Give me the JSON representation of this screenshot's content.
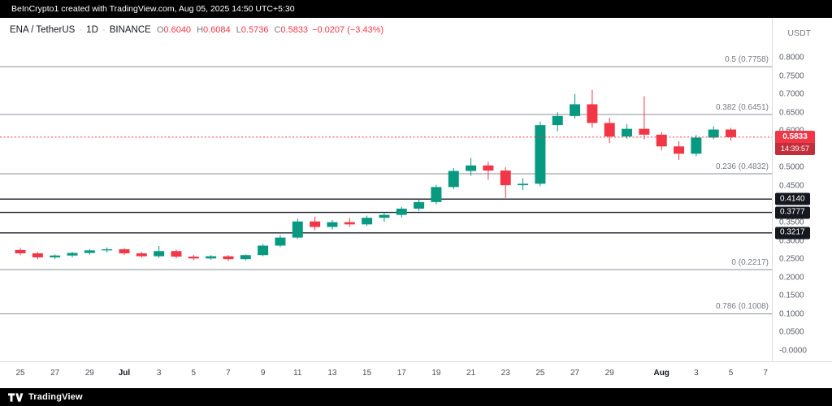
{
  "top_bar": {
    "attribution": "BeInCrypto1 created with TradingView.com, Aug 05, 2025 14:50 UTC+5:30"
  },
  "footer": {
    "brand": "TradingView"
  },
  "legend": {
    "symbol": "ENA / TetherUS",
    "sep": "·",
    "interval": "1D",
    "exchange": "BINANCE",
    "open_label": "O",
    "open": "0.6040",
    "high_label": "H",
    "high": "0.6084",
    "low_label": "L",
    "low": "0.5736",
    "close_label": "C",
    "close": "0.5833",
    "change": "−0.0207 (−3.43%)"
  },
  "price_axis": {
    "currency": "USDT",
    "labels": [
      "0.8000",
      "0.7500",
      "0.7000",
      "0.6500",
      "0.6000",
      "0.5500",
      "0.5000",
      "0.4500",
      "0.3500",
      "0.3000",
      "0.2500",
      "0.2000",
      "0.1500",
      "0.1000",
      "0.0500",
      "-0.0000"
    ],
    "line_badges": [
      {
        "text": "0.4140",
        "price": 0.414
      },
      {
        "text": "0.3777",
        "price": 0.3777
      },
      {
        "text": "0.3217",
        "price": 0.3217
      }
    ],
    "last_price_badge": {
      "text": "0.5833",
      "countdown": "14:39:57",
      "price": 0.5833
    }
  },
  "colors": {
    "up": "#089981",
    "down": "#f23645",
    "last_price": "#f23645",
    "fib_line": "#8b8f99",
    "hline": "#1a1e29"
  },
  "chart_data": {
    "type": "candlestick",
    "title": "ENA / TetherUS · 1D · BINANCE",
    "ylabel": "Price (USDT)",
    "ylim": [
      -0.029,
      0.909
    ],
    "grid": false,
    "last_price": 0.5833,
    "fib_levels": [
      {
        "label": "0.5 (0.7758)",
        "price": 0.7758
      },
      {
        "label": "0.382 (0.6451)",
        "price": 0.6451
      },
      {
        "label": "0.236 (0.4832)",
        "price": 0.4832
      },
      {
        "label": "0 (0.2217)",
        "price": 0.2217
      },
      {
        "label": "0.786 (0.1008)",
        "price": 0.1008
      }
    ],
    "hlines": [
      0.414,
      0.3777,
      0.3217
    ],
    "x_ticks": [
      {
        "label": "25",
        "index": 0
      },
      {
        "label": "27",
        "index": 2
      },
      {
        "label": "29",
        "index": 4
      },
      {
        "label": "Jul",
        "index": 6,
        "strong": true
      },
      {
        "label": "3",
        "index": 8
      },
      {
        "label": "5",
        "index": 10
      },
      {
        "label": "7",
        "index": 12
      },
      {
        "label": "9",
        "index": 14
      },
      {
        "label": "11",
        "index": 16
      },
      {
        "label": "13",
        "index": 18
      },
      {
        "label": "15",
        "index": 20
      },
      {
        "label": "17",
        "index": 22
      },
      {
        "label": "19",
        "index": 24
      },
      {
        "label": "21",
        "index": 26
      },
      {
        "label": "23",
        "index": 28
      },
      {
        "label": "25",
        "index": 30
      },
      {
        "label": "27",
        "index": 32
      },
      {
        "label": "29",
        "index": 34
      },
      {
        "label": "Aug",
        "index": 37,
        "strong": true
      },
      {
        "label": "3",
        "index": 39
      },
      {
        "label": "5",
        "index": 41
      },
      {
        "label": "7",
        "index": 43
      }
    ],
    "dates": [
      "Jun 25",
      "Jun 26",
      "Jun 27",
      "Jun 28",
      "Jun 29",
      "Jun 30",
      "Jul 1",
      "Jul 2",
      "Jul 3",
      "Jul 4",
      "Jul 5",
      "Jul 6",
      "Jul 7",
      "Jul 8",
      "Jul 9",
      "Jul 10",
      "Jul 11",
      "Jul 12",
      "Jul 13",
      "Jul 14",
      "Jul 15",
      "Jul 16",
      "Jul 17",
      "Jul 18",
      "Jul 19",
      "Jul 20",
      "Jul 21",
      "Jul 22",
      "Jul 23",
      "Jul 24",
      "Jul 25",
      "Jul 26",
      "Jul 27",
      "Jul 28",
      "Jul 29",
      "Jul 30",
      "Jul 31",
      "Aug 1",
      "Aug 2",
      "Aug 3",
      "Aug 4",
      "Aug 5"
    ],
    "ohlc": [
      [
        0.275,
        0.281,
        0.261,
        0.266
      ],
      [
        0.266,
        0.27,
        0.25,
        0.255
      ],
      [
        0.255,
        0.263,
        0.25,
        0.26
      ],
      [
        0.26,
        0.27,
        0.255,
        0.267
      ],
      [
        0.267,
        0.278,
        0.262,
        0.274
      ],
      [
        0.274,
        0.282,
        0.268,
        0.277
      ],
      [
        0.277,
        0.28,
        0.261,
        0.266
      ],
      [
        0.266,
        0.27,
        0.254,
        0.258
      ],
      [
        0.258,
        0.286,
        0.254,
        0.272
      ],
      [
        0.272,
        0.276,
        0.252,
        0.257
      ],
      [
        0.257,
        0.262,
        0.247,
        0.252
      ],
      [
        0.252,
        0.261,
        0.248,
        0.258
      ],
      [
        0.258,
        0.261,
        0.245,
        0.25
      ],
      [
        0.25,
        0.263,
        0.247,
        0.261
      ],
      [
        0.261,
        0.291,
        0.258,
        0.287
      ],
      [
        0.287,
        0.316,
        0.283,
        0.309
      ],
      [
        0.309,
        0.361,
        0.305,
        0.353
      ],
      [
        0.353,
        0.366,
        0.329,
        0.338
      ],
      [
        0.338,
        0.357,
        0.331,
        0.351
      ],
      [
        0.351,
        0.362,
        0.339,
        0.345
      ],
      [
        0.345,
        0.369,
        0.341,
        0.363
      ],
      [
        0.363,
        0.376,
        0.352,
        0.371
      ],
      [
        0.371,
        0.393,
        0.364,
        0.388
      ],
      [
        0.388,
        0.413,
        0.381,
        0.406
      ],
      [
        0.406,
        0.453,
        0.4,
        0.447
      ],
      [
        0.447,
        0.499,
        0.441,
        0.491
      ],
      [
        0.491,
        0.526,
        0.478,
        0.506
      ],
      [
        0.506,
        0.516,
        0.467,
        0.492
      ],
      [
        0.492,
        0.501,
        0.417,
        0.452
      ],
      [
        0.452,
        0.471,
        0.439,
        0.456
      ],
      [
        0.456,
        0.626,
        0.449,
        0.616
      ],
      [
        0.616,
        0.651,
        0.599,
        0.641
      ],
      [
        0.641,
        0.701,
        0.634,
        0.673
      ],
      [
        0.673,
        0.712,
        0.609,
        0.622
      ],
      [
        0.622,
        0.636,
        0.567,
        0.585
      ],
      [
        0.585,
        0.619,
        0.579,
        0.606
      ],
      [
        0.606,
        0.695,
        0.577,
        0.59
      ],
      [
        0.59,
        0.598,
        0.547,
        0.558
      ],
      [
        0.558,
        0.572,
        0.521,
        0.538
      ],
      [
        0.538,
        0.589,
        0.531,
        0.582
      ],
      [
        0.582,
        0.613,
        0.577,
        0.604
      ],
      [
        0.604,
        0.6084,
        0.5736,
        0.5833
      ]
    ]
  }
}
